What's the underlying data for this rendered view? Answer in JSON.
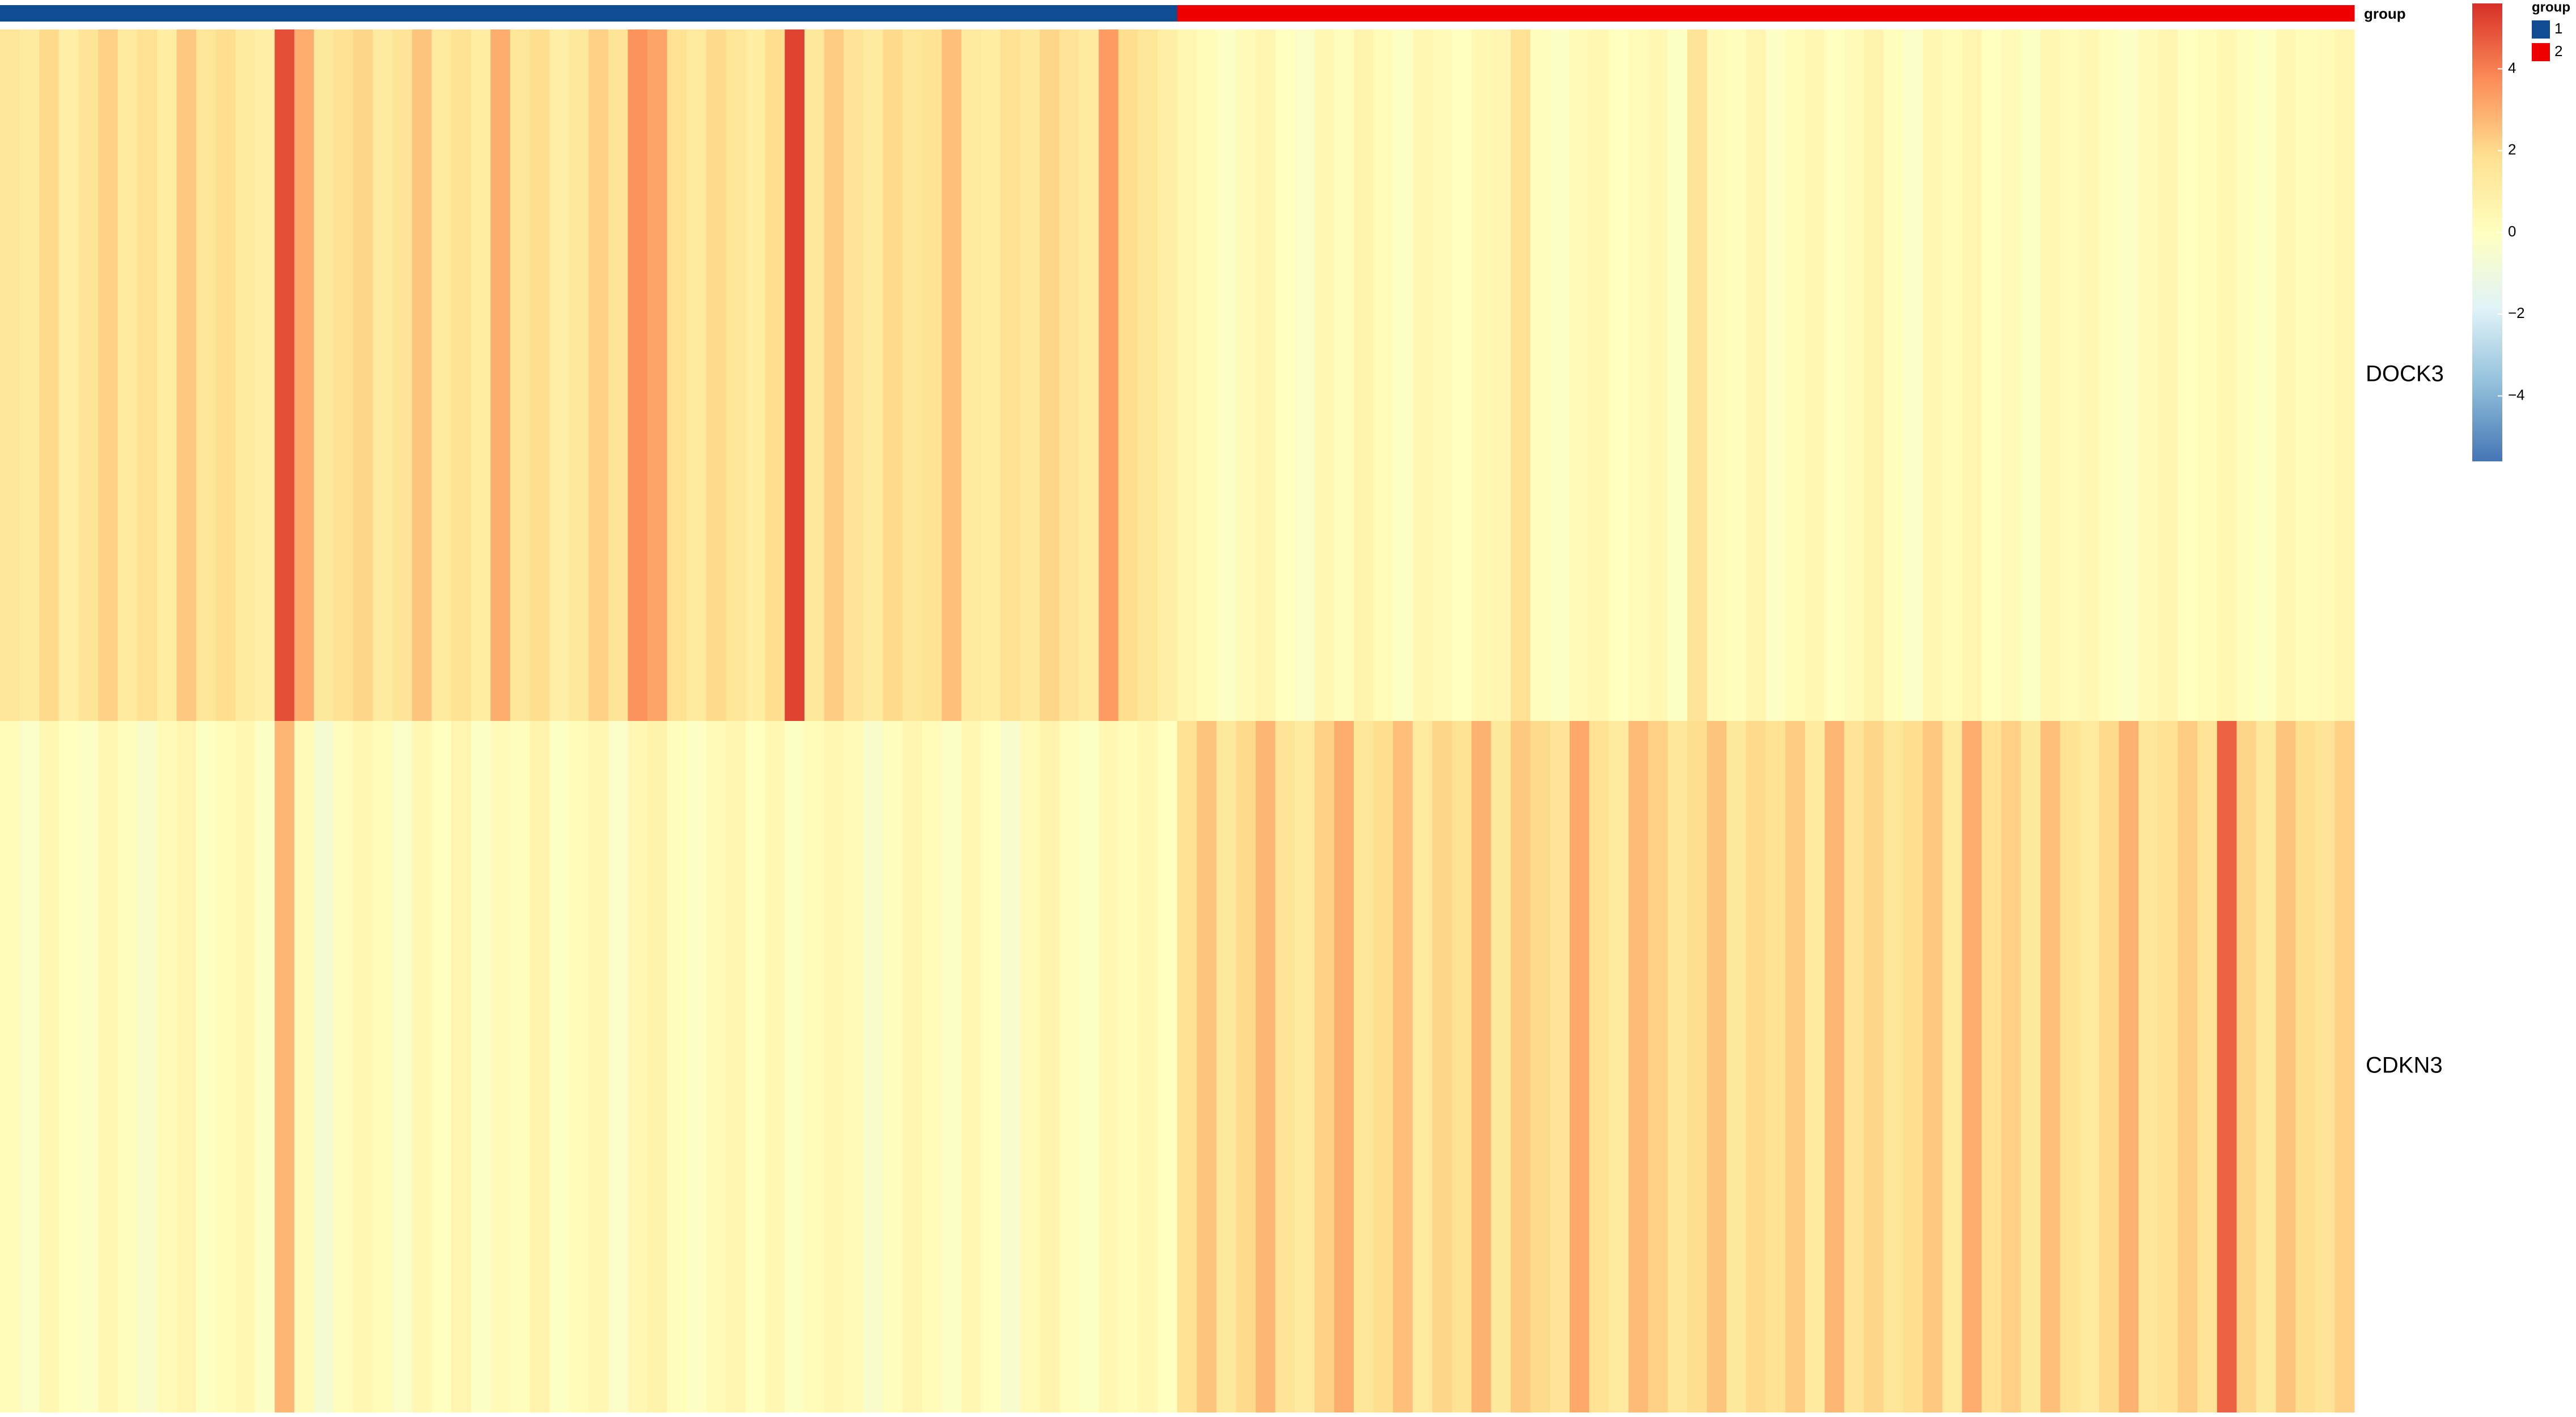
{
  "chart_data": {
    "type": "heatmap",
    "rows": [
      "DOCK3",
      "CDKN3"
    ],
    "annotation": {
      "title": "group",
      "levels": [
        {
          "name": "1",
          "color": "#0F4C92"
        },
        {
          "name": "2",
          "color": "#EE0000"
        }
      ]
    },
    "column_groups": [
      1,
      1,
      1,
      1,
      1,
      1,
      1,
      1,
      1,
      1,
      1,
      1,
      1,
      1,
      1,
      1,
      1,
      1,
      1,
      1,
      1,
      1,
      1,
      1,
      1,
      1,
      1,
      1,
      1,
      1,
      1,
      1,
      1,
      1,
      1,
      1,
      1,
      1,
      1,
      1,
      1,
      1,
      1,
      1,
      1,
      1,
      1,
      1,
      1,
      1,
      1,
      1,
      1,
      1,
      1,
      1,
      1,
      1,
      1,
      1,
      2,
      2,
      2,
      2,
      2,
      2,
      2,
      2,
      2,
      2,
      2,
      2,
      2,
      2,
      2,
      2,
      2,
      2,
      2,
      2,
      2,
      2,
      2,
      2,
      2,
      2,
      2,
      2,
      2,
      2,
      2,
      2,
      2,
      2,
      2,
      2,
      2,
      2,
      2,
      2,
      2,
      2,
      2,
      2,
      2,
      2,
      2,
      2,
      2,
      2,
      2,
      2,
      2,
      2,
      2,
      2,
      2,
      2,
      2,
      2
    ],
    "values": [
      [
        1.5,
        1.2,
        2.0,
        1.0,
        1.6,
        2.2,
        1.3,
        1.8,
        1.1,
        2.4,
        1.5,
        1.9,
        1.2,
        1.0,
        5.0,
        3.0,
        1.4,
        1.8,
        2.1,
        1.2,
        1.6,
        2.5,
        1.3,
        1.7,
        1.1,
        3.0,
        1.5,
        1.9,
        1.0,
        1.4,
        2.2,
        1.6,
        3.6,
        3.2,
        1.8,
        1.3,
        2.0,
        1.5,
        1.1,
        1.9,
        5.2,
        1.4,
        2.3,
        1.6,
        1.2,
        2.0,
        1.5,
        1.7,
        2.6,
        1.3,
        1.1,
        1.8,
        1.4,
        2.1,
        1.6,
        1.2,
        3.4,
        1.9,
        1.5,
        1.0,
        0.5,
        0.2,
        -0.2,
        0.3,
        0.6,
        0.0,
        -0.3,
        0.4,
        0.1,
        0.7,
        0.2,
        -0.1,
        0.5,
        0.3,
        0.0,
        0.4,
        0.6,
        1.8,
        0.1,
        -0.2,
        0.3,
        0.5,
        0.0,
        0.2,
        0.4,
        -0.1,
        1.6,
        0.3,
        0.1,
        0.6,
        -0.2,
        0.2,
        0.5,
        0.0,
        0.3,
        0.7,
        0.1,
        -0.3,
        0.4,
        0.2,
        0.6,
        0.0,
        0.3,
        -0.1,
        0.5,
        0.2,
        0.4,
        0.1,
        -0.2,
        0.3,
        0.6,
        0.0,
        0.2,
        0.5,
        0.1,
        -0.1,
        0.4,
        0.2,
        0.3,
        0.6
      ],
      [
        0.2,
        -0.3,
        0.4,
        0.0,
        -0.2,
        0.5,
        0.1,
        -0.4,
        0.3,
        0.6,
        -0.1,
        0.2,
        0.4,
        -0.2,
        2.8,
        0.3,
        -0.6,
        0.1,
        0.5,
        0.2,
        -0.3,
        0.4,
        0.0,
        0.6,
        -0.2,
        0.3,
        0.1,
        0.7,
        -0.1,
        0.2,
        0.5,
        -0.3,
        0.4,
        0.8,
        0.1,
        -0.2,
        0.3,
        0.6,
        0.0,
        0.4,
        -0.1,
        0.2,
        0.5,
        0.3,
        -0.4,
        0.1,
        0.6,
        0.2,
        -0.2,
        0.4,
        0.0,
        -0.5,
        0.3,
        0.7,
        0.1,
        -0.1,
        0.4,
        0.2,
        0.5,
        0.0,
        1.8,
        2.5,
        1.4,
        2.0,
        2.8,
        1.6,
        1.2,
        2.2,
        3.0,
        1.5,
        1.9,
        2.6,
        1.3,
        2.1,
        1.7,
        2.9,
        1.4,
        2.4,
        2.0,
        1.6,
        3.1,
        1.8,
        1.3,
        2.7,
        2.2,
        1.5,
        1.9,
        2.5,
        1.4,
        2.0,
        1.7,
        2.3,
        1.2,
        2.8,
        1.6,
        2.1,
        1.5,
        1.9,
        2.4,
        1.3,
        3.0,
        1.8,
        2.2,
        1.4,
        2.6,
        1.7,
        1.3,
        2.0,
        2.9,
        1.5,
        1.8,
        2.3,
        1.6,
        4.6,
        2.1,
        1.4,
        2.5,
        1.9,
        1.6,
        2.2
      ]
    ],
    "colors": [
      "#4575B4",
      "#91BFDB",
      "#E0F3F8",
      "#FFFFBF",
      "#FEE090",
      "#FC8D59",
      "#D73027"
    ],
    "zlim": [
      -5.6,
      5.6
    ],
    "zticks": [
      4,
      2,
      0,
      {
        "value": -2,
        "label": "−2"
      },
      {
        "value": -4,
        "label": "−4"
      }
    ]
  }
}
